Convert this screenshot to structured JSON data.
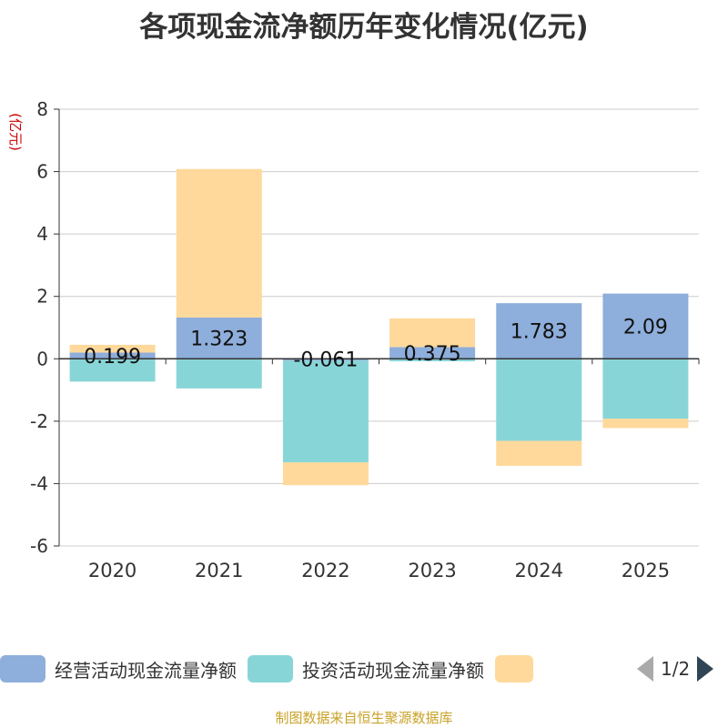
{
  "chart_data": {
    "type": "bar",
    "stacked": true,
    "title": "各项现金流净额历年变化情况(亿元)",
    "ylabel": "(亿元)",
    "categories": [
      "2020",
      "2021",
      "2022",
      "2023",
      "2024",
      "2025"
    ],
    "ylim": [
      -6,
      8
    ],
    "yticks": [
      8,
      6,
      4,
      2,
      0,
      -2,
      -4,
      -6
    ],
    "series": [
      {
        "name": "经营活动现金流量净额",
        "color": "#8eaedb",
        "values": [
          0.199,
          1.323,
          -0.061,
          0.375,
          1.783,
          2.09
        ],
        "labels": [
          "0.199",
          "1.323",
          "-0.061",
          "0.375",
          "1.783",
          "2.09"
        ]
      },
      {
        "name": "投资活动现金流量净额",
        "color": "#88d5d8",
        "values": [
          -0.73,
          -0.95,
          -3.26,
          -0.08,
          -2.63,
          -1.92
        ]
      },
      {
        "name": "",
        "color": "#fed99b",
        "values": [
          0.25,
          4.76,
          -0.73,
          0.92,
          -0.8,
          -0.3
        ]
      }
    ]
  },
  "legend": {
    "page": "1/2"
  },
  "source": "制图数据来自恒生聚源数据库"
}
